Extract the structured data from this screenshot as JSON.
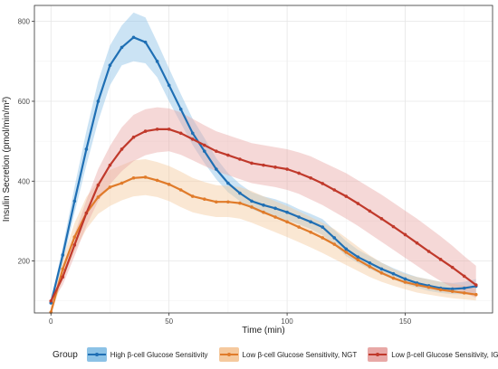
{
  "chart_data": {
    "type": "line",
    "xlabel": "Time (min)",
    "ylabel": "Insulin Secretion (pmol/min/m²)",
    "xlim": [
      -7,
      187
    ],
    "ylim": [
      70,
      840
    ],
    "xticks": [
      0,
      50,
      100,
      150
    ],
    "yticks": [
      200,
      400,
      600,
      800
    ],
    "grid": true,
    "legend_position": "bottom",
    "legend_title": "Group",
    "x": [
      0,
      5,
      10,
      15,
      20,
      25,
      30,
      35,
      40,
      45,
      50,
      55,
      60,
      65,
      70,
      75,
      80,
      85,
      90,
      95,
      100,
      105,
      110,
      115,
      120,
      125,
      130,
      135,
      140,
      145,
      150,
      155,
      160,
      165,
      170,
      175,
      180
    ],
    "series": [
      {
        "name": "High β-cell Glucose Sensitivity",
        "color": "#1f6fb4",
        "band_color": "#8cc2e6",
        "values": [
          95,
          215,
          350,
          480,
          600,
          690,
          735,
          760,
          748,
          700,
          640,
          580,
          520,
          475,
          430,
          395,
          370,
          350,
          340,
          332,
          322,
          310,
          298,
          285,
          258,
          230,
          210,
          195,
          180,
          168,
          155,
          145,
          138,
          132,
          130,
          132,
          137
        ],
        "lower": [
          90,
          195,
          320,
          440,
          550,
          640,
          690,
          700,
          695,
          660,
          600,
          545,
          490,
          445,
          405,
          372,
          350,
          330,
          318,
          312,
          302,
          292,
          280,
          265,
          240,
          212,
          195,
          180,
          166,
          154,
          142,
          133,
          125,
          120,
          117,
          117,
          120
        ],
        "upper": [
          100,
          235,
          385,
          525,
          650,
          740,
          790,
          822,
          810,
          748,
          682,
          618,
          556,
          508,
          458,
          420,
          393,
          372,
          362,
          355,
          344,
          330,
          318,
          305,
          278,
          250,
          228,
          212,
          196,
          182,
          170,
          160,
          154,
          148,
          145,
          148,
          155
        ]
      },
      {
        "name": "Low β-cell Glucose Sensitivity, NGT",
        "color": "#e07b2a",
        "band_color": "#f5c99e",
        "values": [
          72,
          180,
          260,
          320,
          360,
          385,
          395,
          408,
          410,
          402,
          392,
          378,
          362,
          355,
          348,
          348,
          345,
          335,
          322,
          310,
          298,
          285,
          272,
          258,
          242,
          222,
          203,
          186,
          170,
          157,
          147,
          140,
          134,
          128,
          124,
          120,
          116
        ],
        "lower": [
          65,
          155,
          225,
          280,
          318,
          338,
          352,
          362,
          365,
          360,
          350,
          335,
          322,
          315,
          310,
          310,
          306,
          296,
          284,
          272,
          260,
          247,
          234,
          220,
          205,
          190,
          175,
          160,
          148,
          138,
          129,
          121,
          116,
          111,
          107,
          104,
          101
        ],
        "upper": [
          80,
          205,
          295,
          360,
          400,
          428,
          440,
          452,
          455,
          448,
          438,
          424,
          408,
          398,
          390,
          388,
          385,
          375,
          362,
          350,
          338,
          324,
          310,
          296,
          280,
          258,
          236,
          214,
          196,
          180,
          168,
          160,
          154,
          148,
          143,
          139,
          134
        ]
      },
      {
        "name": "Low β-cell Glucose Sensitivity, IGT/IFG",
        "color": "#c0392b",
        "band_color": "#e8a8a6",
        "values": [
          100,
          160,
          240,
          320,
          390,
          440,
          480,
          510,
          525,
          530,
          530,
          520,
          505,
          490,
          475,
          465,
          455,
          445,
          440,
          435,
          430,
          420,
          408,
          394,
          378,
          362,
          344,
          325,
          306,
          286,
          266,
          245,
          224,
          204,
          184,
          162,
          140
        ],
        "lower": [
          92,
          140,
          212,
          288,
          350,
          392,
          425,
          450,
          465,
          472,
          475,
          466,
          452,
          438,
          425,
          415,
          405,
          395,
          390,
          385,
          378,
          368,
          354,
          340,
          323,
          306,
          288,
          268,
          248,
          228,
          208,
          188,
          168,
          150,
          134,
          120,
          108
        ],
        "upper": [
          108,
          180,
          268,
          352,
          430,
          488,
          535,
          566,
          580,
          585,
          582,
          572,
          556,
          540,
          525,
          515,
          505,
          495,
          490,
          485,
          480,
          472,
          462,
          448,
          434,
          420,
          402,
          384,
          366,
          346,
          326,
          306,
          284,
          262,
          238,
          212,
          188
        ]
      }
    ]
  }
}
